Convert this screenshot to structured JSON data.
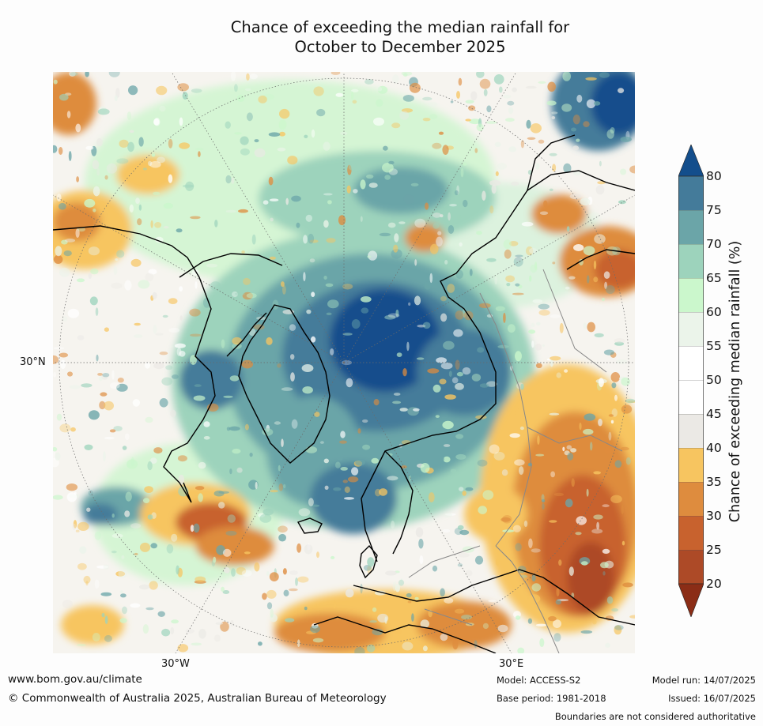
{
  "title_line1": "Chance of exceeding the median rainfall for",
  "title_line2": "October to December 2025",
  "map": {
    "lat_label": "30°N",
    "lon_labels": [
      "30°W",
      "30°E"
    ],
    "projection": "north-polar-stereographic",
    "feature_colors": {
      "coastline": "#000000",
      "country_border": "#888888",
      "graticule": "#6a6a6a",
      "lake": "#9a9a9a"
    }
  },
  "colorbar": {
    "title": "Chance of exceeding median rainfall (%)",
    "ticks": [
      "20",
      "25",
      "30",
      "35",
      "40",
      "45",
      "50",
      "55",
      "60",
      "65",
      "70",
      "75",
      "80"
    ],
    "under_color": "#8b2d16",
    "over_color": "#134e8c",
    "bands": [
      {
        "range": "20-25",
        "color": "#ad4a27"
      },
      {
        "range": "25-30",
        "color": "#c8622e"
      },
      {
        "range": "30-35",
        "color": "#de8c3e"
      },
      {
        "range": "35-40",
        "color": "#f7c560"
      },
      {
        "range": "40-45",
        "color": "#ebe9e5"
      },
      {
        "range": "45-50",
        "color": "#ffffff"
      },
      {
        "range": "50-55",
        "color": "#ffffff"
      },
      {
        "range": "55-60",
        "color": "#ebf4ea"
      },
      {
        "range": "60-65",
        "color": "#cbf7cc"
      },
      {
        "range": "65-70",
        "color": "#9dd3bc"
      },
      {
        "range": "70-75",
        "color": "#6ba5a8"
      },
      {
        "range": "75-80",
        "color": "#447b9a"
      }
    ]
  },
  "footer": {
    "website": "www.bom.gov.au/climate",
    "copyright": "© Commonwealth of Australia 2025, Australian Bureau of Meteorology",
    "model": "Model: ACCESS-S2",
    "base_period": "Base period: 1981-2018",
    "model_run": "Model run: 14/07/2025",
    "issued": "Issued: 16/07/2025",
    "disclaimer": "Boundaries are not considered authoritative"
  }
}
